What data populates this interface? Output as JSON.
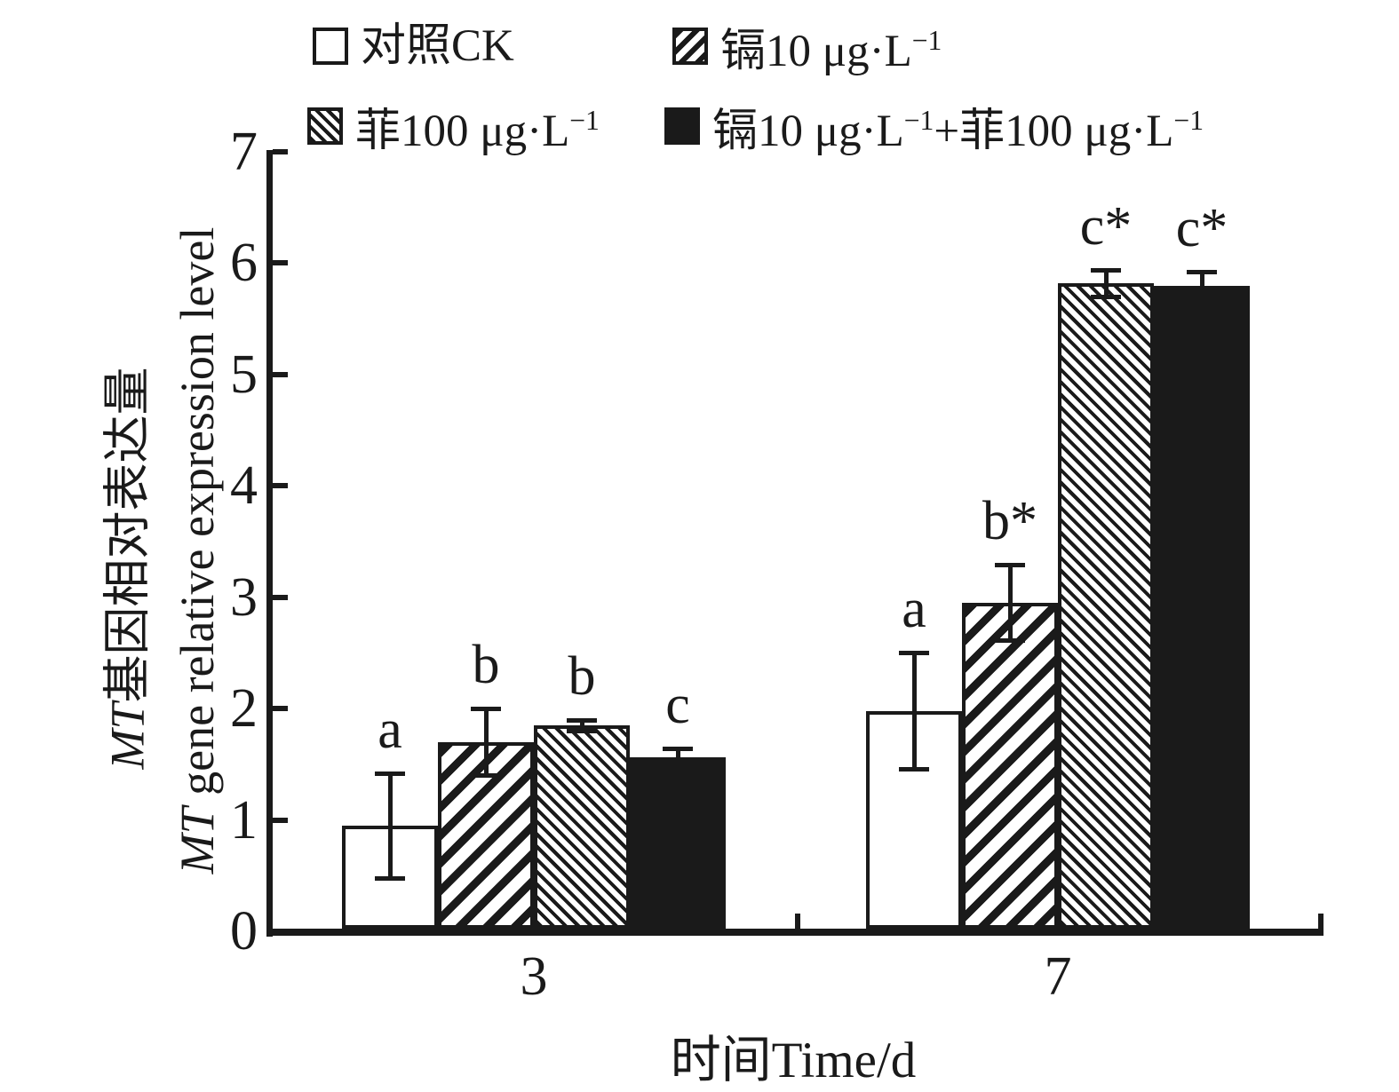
{
  "chart_data": {
    "type": "bar",
    "xlabel": "时间Time/d",
    "ylabel_zh": "MT基因相对表达量",
    "ylabel_en": "MT gene relative expression level",
    "ylim": [
      0,
      7
    ],
    "yticks": [
      0,
      1,
      2,
      3,
      4,
      5,
      6,
      7
    ],
    "grid": false,
    "legend_position": "top",
    "categories": [
      "3",
      "7"
    ],
    "series": [
      {
        "key": "ck",
        "name": "对照CK",
        "pattern": "open",
        "values": [
          0.95,
          1.98
        ],
        "errors": [
          0.47,
          0.52
        ],
        "letters": [
          "a",
          "a"
        ]
      },
      {
        "key": "cd10",
        "name": "镉10 μg·L⁻¹",
        "pattern": "hfwd",
        "values": [
          1.7,
          2.95
        ],
        "errors": [
          0.3,
          0.34
        ],
        "letters": [
          "b",
          "b*"
        ]
      },
      {
        "key": "phe100",
        "name": "菲100 μg·L⁻¹",
        "pattern": "hback",
        "values": [
          1.85,
          5.82
        ],
        "errors": [
          0.05,
          0.12
        ],
        "letters": [
          "b",
          "c*"
        ]
      },
      {
        "key": "cd10-phe100",
        "name": "镉10 μg·L⁻¹+菲100 μg·L⁻¹",
        "pattern": "solid",
        "values": [
          1.56,
          5.79
        ],
        "errors": [
          0.08,
          0.13
        ],
        "letters": [
          "c",
          "c*"
        ]
      }
    ],
    "colors": {
      "ink": "#1a1a1a",
      "background": "#ffffff"
    }
  }
}
